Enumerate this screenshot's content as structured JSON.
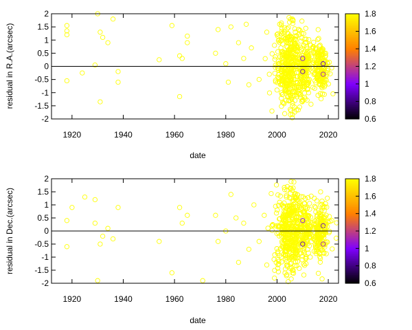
{
  "chart_data": [
    {
      "type": "scatter",
      "title": "",
      "xlabel": "date",
      "ylabel": "residual in R.A.(arcsec)",
      "xlim": [
        1912,
        2024
      ],
      "ylim": [
        -2,
        2
      ],
      "x_ticks": [
        "1920",
        "1940",
        "1960",
        "1980",
        "2000",
        "2020"
      ],
      "y_ticks": [
        "-2",
        "-1.5",
        "-1",
        "-0.5",
        "0",
        "0.5",
        "1",
        "1.5",
        "2"
      ],
      "zero_line": true,
      "colorbar": {
        "range": [
          0.6,
          1.8
        ],
        "ticks": [
          "0.6",
          "0.8",
          "1",
          "1.2",
          "1.4",
          "1.6",
          "1.8"
        ],
        "colors": [
          "#000000",
          "#7f00ff",
          "#ff8000",
          "#ffff00"
        ]
      },
      "series": [
        {
          "points": [
            [
              1918,
              1.55,
              1.8
            ],
            [
              1918,
              1.35,
              1.8
            ],
            [
              1918,
              1.2,
              1.8
            ],
            [
              1918,
              -0.55,
              1.8
            ],
            [
              1924,
              -0.25,
              1.8
            ],
            [
              1929,
              0.05,
              1.8
            ],
            [
              1930,
              2.0,
              1.8
            ],
            [
              1931,
              1.3,
              1.8
            ],
            [
              1931,
              -1.35,
              1.8
            ],
            [
              1932,
              1.1,
              1.8
            ],
            [
              1934,
              0.9,
              1.8
            ],
            [
              1936,
              1.8,
              1.8
            ],
            [
              1938,
              -0.2,
              1.8
            ],
            [
              1938,
              -0.6,
              1.8
            ],
            [
              1954,
              0.25,
              1.8
            ],
            [
              1959,
              1.55,
              1.8
            ],
            [
              1962,
              0.4,
              1.8
            ],
            [
              1962,
              -1.15,
              1.8
            ],
            [
              1963,
              0.3,
              1.8
            ],
            [
              1965,
              1.15,
              1.8
            ],
            [
              1965,
              0.9,
              1.8
            ],
            [
              1976,
              0.5,
              1.8
            ],
            [
              1977,
              1.4,
              1.8
            ],
            [
              1980,
              0.1,
              1.8
            ],
            [
              1981,
              -0.6,
              1.8
            ],
            [
              1982,
              1.5,
              1.8
            ],
            [
              1985,
              0.9,
              1.8
            ],
            [
              1987,
              0.3,
              1.8
            ],
            [
              1988,
              1.6,
              1.8
            ],
            [
              1989,
              -0.7,
              1.8
            ],
            [
              1990,
              0.7,
              1.8
            ],
            [
              1993,
              -0.5,
              1.8
            ],
            [
              1996,
              1.3,
              1.8
            ],
            [
              1997,
              -0.3,
              1.8
            ],
            [
              1998,
              -1.7,
              1.8
            ],
            [
              1999,
              0.8,
              1.8
            ],
            [
              2000,
              -0.9,
              1.8
            ],
            [
              2001,
              1.6,
              1.8
            ],
            [
              2002,
              0.4,
              1.8
            ],
            [
              2003,
              -1.8,
              1.8
            ],
            [
              2004,
              1.0,
              1.8
            ],
            [
              2005,
              -0.4,
              1.8
            ],
            [
              2006,
              1.8,
              1.8
            ],
            [
              2007,
              -1.3,
              1.8
            ],
            [
              2008,
              0.6,
              1.8
            ],
            [
              2010,
              0.3,
              1.0
            ],
            [
              2010,
              -0.2,
              0.9
            ],
            [
              2012,
              0.2,
              1.8
            ],
            [
              2014,
              -0.8,
              1.8
            ],
            [
              2015,
              0.7,
              1.8
            ],
            [
              2016,
              -1.1,
              1.8
            ],
            [
              2018,
              0.1,
              0.9
            ],
            [
              2018,
              -0.3,
              1.1
            ],
            [
              2019,
              0.5,
              1.8
            ],
            [
              2019,
              -0.5,
              1.8
            ]
          ],
          "cloud": [
            {
              "center_x": 2005,
              "spread_x": 5,
              "spread_y": 0.8,
              "count": 420
            },
            {
              "center_x": 2011,
              "spread_x": 2,
              "spread_y": 0.6,
              "count": 120
            },
            {
              "center_x": 2017,
              "spread_x": 3,
              "spread_y": 0.5,
              "count": 180
            }
          ]
        }
      ]
    },
    {
      "type": "scatter",
      "title": "",
      "xlabel": "date",
      "ylabel": "residual in Dec.(arcsec)",
      "xlim": [
        1912,
        2024
      ],
      "ylim": [
        -2,
        2
      ],
      "x_ticks": [
        "1920",
        "1940",
        "1960",
        "1980",
        "2000",
        "2020"
      ],
      "y_ticks": [
        "-2",
        "-1.5",
        "-1",
        "-0.5",
        "0",
        "0.5",
        "1",
        "1.5",
        "2"
      ],
      "zero_line": true,
      "colorbar": {
        "range": [
          0.6,
          1.8
        ],
        "ticks": [
          "0.6",
          "0.8",
          "1",
          "1.2",
          "1.4",
          "1.6",
          "1.8"
        ],
        "colors": [
          "#000000",
          "#7f00ff",
          "#ff8000",
          "#ffff00"
        ]
      },
      "series": [
        {
          "points": [
            [
              1918,
              0.4,
              1.8
            ],
            [
              1918,
              -0.6,
              1.8
            ],
            [
              1920,
              0.9,
              1.8
            ],
            [
              1925,
              1.3,
              1.8
            ],
            [
              1929,
              1.2,
              1.8
            ],
            [
              1929,
              0.3,
              1.8
            ],
            [
              1930,
              -1.9,
              1.8
            ],
            [
              1931,
              -0.5,
              1.8
            ],
            [
              1932,
              -0.2,
              1.8
            ],
            [
              1934,
              0.1,
              1.8
            ],
            [
              1936,
              -0.3,
              1.8
            ],
            [
              1938,
              0.9,
              1.8
            ],
            [
              1954,
              -0.4,
              1.8
            ],
            [
              1959,
              -1.6,
              1.8
            ],
            [
              1962,
              0.9,
              1.8
            ],
            [
              1963,
              0.3,
              1.8
            ],
            [
              1965,
              0.6,
              1.8
            ],
            [
              1971,
              -1.9,
              1.8
            ],
            [
              1976,
              0.6,
              1.8
            ],
            [
              1977,
              -0.4,
              1.8
            ],
            [
              1980,
              0.0,
              1.8
            ],
            [
              1982,
              1.4,
              1.8
            ],
            [
              1984,
              0.5,
              1.8
            ],
            [
              1985,
              -1.2,
              1.8
            ],
            [
              1987,
              0.3,
              1.8
            ],
            [
              1989,
              -0.7,
              1.8
            ],
            [
              1991,
              1.0,
              1.8
            ],
            [
              1993,
              -0.4,
              1.8
            ],
            [
              1995,
              0.6,
              1.8
            ],
            [
              1996,
              -1.3,
              1.8
            ],
            [
              1998,
              0.2,
              1.8
            ],
            [
              1999,
              -1.8,
              1.8
            ],
            [
              2001,
              1.1,
              1.8
            ],
            [
              2002,
              -0.6,
              1.8
            ],
            [
              2004,
              1.7,
              1.8
            ],
            [
              2005,
              0.3,
              1.8
            ],
            [
              2006,
              -1.5,
              1.8
            ],
            [
              2007,
              0.8,
              1.8
            ],
            [
              2008,
              -0.2,
              1.8
            ],
            [
              2010,
              0.4,
              1.0
            ],
            [
              2010,
              -0.5,
              0.9
            ],
            [
              2012,
              0.6,
              1.8
            ],
            [
              2013,
              -1.0,
              1.8
            ],
            [
              2015,
              0.9,
              1.8
            ],
            [
              2016,
              -0.8,
              1.8
            ],
            [
              2017,
              1.5,
              1.8
            ],
            [
              2018,
              0.2,
              0.9
            ],
            [
              2018,
              -0.5,
              1.1
            ],
            [
              2019,
              0.1,
              1.8
            ]
          ],
          "cloud": [
            {
              "center_x": 2005,
              "spread_x": 5,
              "spread_y": 0.8,
              "count": 420
            },
            {
              "center_x": 2011,
              "spread_x": 2,
              "spread_y": 0.6,
              "count": 120
            },
            {
              "center_x": 2017,
              "spread_x": 3,
              "spread_y": 0.5,
              "count": 180
            }
          ]
        }
      ]
    }
  ]
}
